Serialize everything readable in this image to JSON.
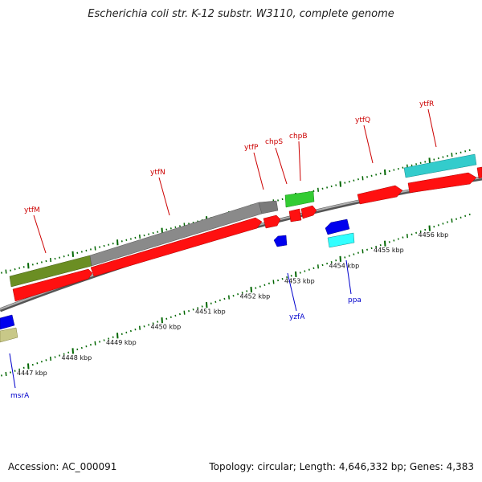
{
  "title": "Escherichia coli str. K-12 substr. W3110, complete genome",
  "footer": {
    "accession": "Accession: AC_000091",
    "summary": "Topology: circular; Length: 4,646,332 bp; Genes: 4,383"
  },
  "colors": {
    "forward_label": "#cc0000",
    "reverse_label": "#0000cc",
    "tick": "#006600",
    "backbone": "#8a8a8a"
  },
  "position_ticks": [
    {
      "kbp": 4447,
      "label": "4447 kbp"
    },
    {
      "kbp": 4448,
      "label": "4448 kbp"
    },
    {
      "kbp": 4449,
      "label": "4449 kbp"
    },
    {
      "kbp": 4450,
      "label": "4450 kbp"
    },
    {
      "kbp": 4451,
      "label": "4451 kbp"
    },
    {
      "kbp": 4452,
      "label": "4452 kbp"
    },
    {
      "kbp": 4453,
      "label": "4453 kbp"
    },
    {
      "kbp": 4454,
      "label": "4454 kbp"
    },
    {
      "kbp": 4455,
      "label": "4455 kbp"
    },
    {
      "kbp": 4456,
      "label": "4456 kbp"
    }
  ],
  "forward_genes": [
    {
      "label": "ytfM",
      "color": "#6b8e23"
    },
    {
      "label": "ytfN",
      "color": "#808080"
    },
    {
      "label": "ytfP",
      "color": "#ff0000"
    },
    {
      "label": "chpS",
      "color": "#ff0000"
    },
    {
      "label": "chpB",
      "color": "#33cc33"
    },
    {
      "label": "ytfQ",
      "color": "#ff0000"
    },
    {
      "label": "ytfR",
      "color": "#33cccc"
    }
  ],
  "reverse_genes": [
    {
      "label": "msrA",
      "color": "#0000ee"
    },
    {
      "label": "yzfA",
      "color": "#0000ee"
    },
    {
      "label": "ppa",
      "color": "#0000ee"
    }
  ]
}
